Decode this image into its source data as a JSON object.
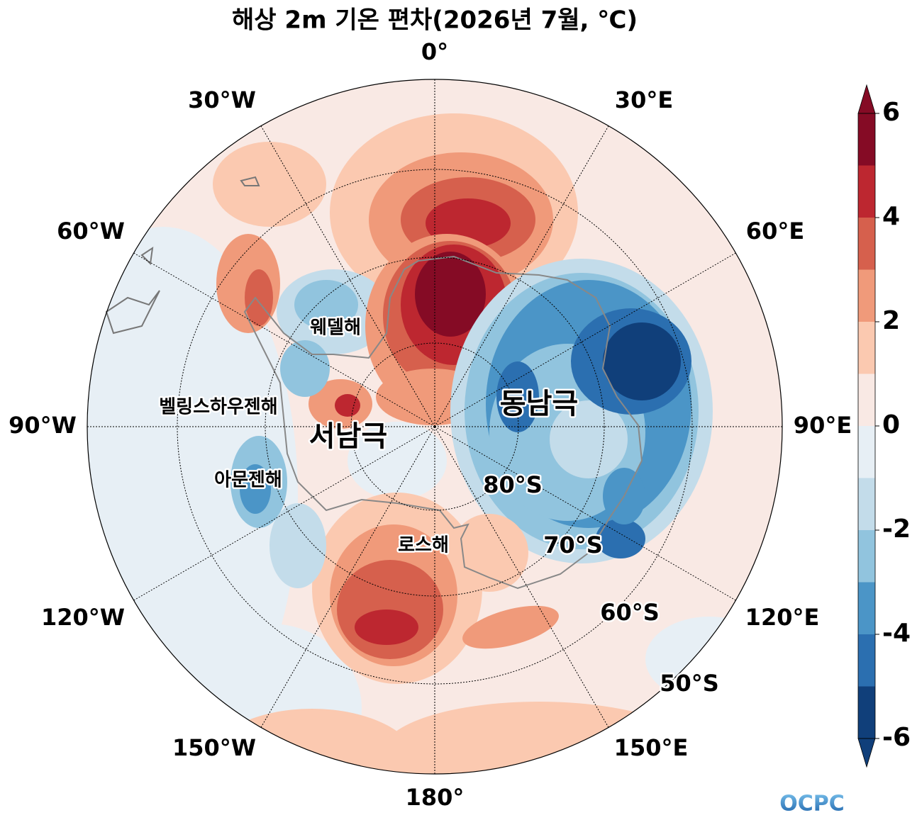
{
  "title": "해상 2m 기온 편차(2026년 7월, ℃)",
  "map": {
    "meridian_labels": [
      "0°",
      "30°E",
      "60°E",
      "90°E",
      "120°E",
      "150°E",
      "180°",
      "150°W",
      "120°W",
      "90°W",
      "60°W",
      "30°W"
    ],
    "parallel_labels": [
      "80°S",
      "70°S",
      "60°S",
      "50°S"
    ],
    "region_labels": [
      "웨델해",
      "벨링스하우젠해",
      "아문젠해",
      "로스해",
      "서남극",
      "동남극"
    ]
  },
  "colorbar": {
    "levels": [
      -6,
      -5,
      -4,
      -3,
      -2,
      -1,
      0,
      1,
      2,
      3,
      4,
      5,
      6
    ],
    "colors": [
      "#103f7a",
      "#2b6fb0",
      "#4b95c7",
      "#91c4de",
      "#c3dcea",
      "#e7eff5",
      "#f9e9e4",
      "#fbc9b0",
      "#f09a7a",
      "#d6604d",
      "#bd2730",
      "#850b25"
    ],
    "ticks": [
      -6,
      -4,
      -2,
      0,
      2,
      4,
      6
    ]
  },
  "logo": "OCPC"
}
